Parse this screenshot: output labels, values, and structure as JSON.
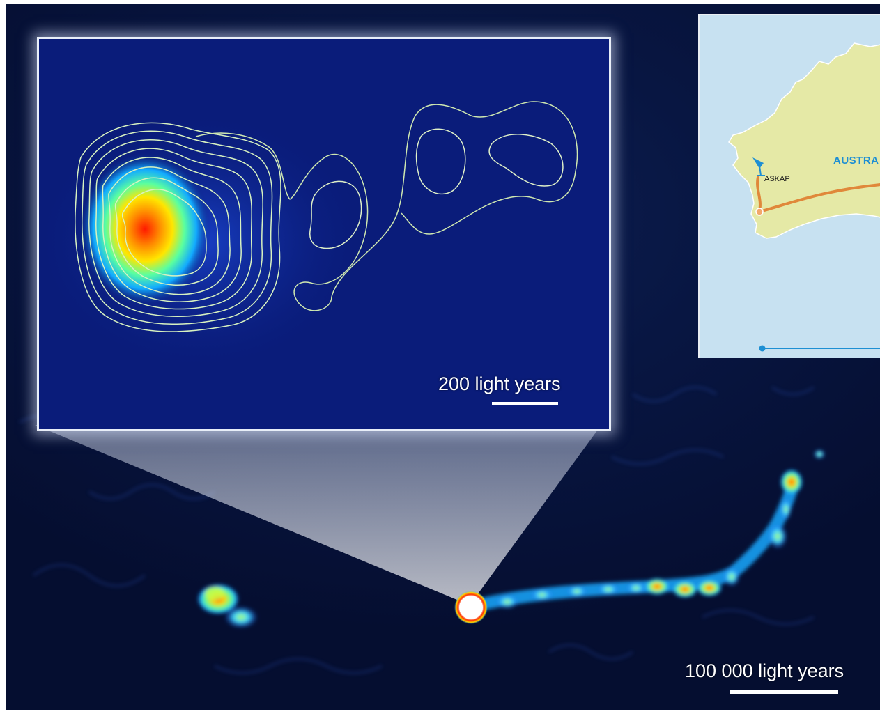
{
  "main_image": {
    "scale_label": "100 000 light years",
    "scale_meaning": "scale bar"
  },
  "inset": {
    "scale_label": "200 light years"
  },
  "map": {
    "telescope_label": "ASKAP",
    "country_label": "AUSTRA"
  },
  "colors": {
    "sky_background": "#081642",
    "inset_background": "#0a1c7a",
    "jet_cyan": "#3fd7ff",
    "hotspot_red": "#ff2a00",
    "map_sea": "#c7e1f1",
    "map_land": "#e5e9a6",
    "map_route": "#e0883a",
    "map_accent": "#1e8fd3"
  },
  "icons": {
    "telescope": "radio-dish-icon"
  }
}
